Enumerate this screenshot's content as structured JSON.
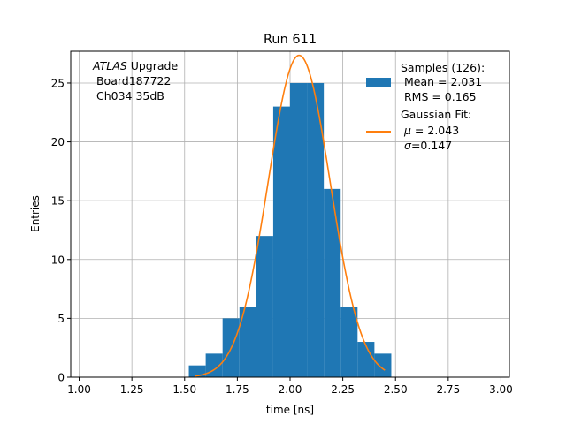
{
  "chart_data": {
    "type": "bar",
    "title": "Run 611",
    "xlabel": "time [ns]",
    "ylabel": "Entries",
    "xlim": [
      0.96,
      3.04
    ],
    "ylim": [
      0,
      27.7
    ],
    "grid": true,
    "legend_position": "top-right",
    "x_ticks": [
      "1.00",
      "1.25",
      "1.50",
      "1.75",
      "2.00",
      "2.25",
      "2.50",
      "2.75",
      "3.00"
    ],
    "y_ticks": [
      "0",
      "5",
      "10",
      "15",
      "20",
      "25"
    ],
    "bin_edges": [
      1.52,
      1.6,
      1.68,
      1.76,
      1.84,
      1.92,
      2.0,
      2.08,
      2.16,
      2.24,
      2.32,
      2.4,
      2.48
    ],
    "counts": [
      1,
      2,
      5,
      6,
      12,
      23,
      25,
      25,
      16,
      6,
      3,
      2
    ],
    "fit": {
      "mu": 2.043,
      "sigma": 0.147,
      "x_range": [
        1.55,
        2.45
      ]
    },
    "annotation": {
      "italic": "ATLAS",
      "rest": " Upgrade",
      "line2": " Board187722",
      "line3": " Ch034 35dB"
    },
    "legend": {
      "hist_line1": "Samples (126):",
      "hist_line2": " Mean = 2.031",
      "hist_line3": " RMS = 0.165",
      "fit_line1": "Gaussian Fit:",
      "fit_line2_sym": "μ",
      "fit_line2_val": " = 2.043",
      "fit_line3_sym": "σ",
      "fit_line3_val": "=0.147"
    },
    "colors": {
      "hist": "#1f77b4",
      "fit": "#ff7f0e",
      "grid": "#b0b0b0"
    }
  }
}
